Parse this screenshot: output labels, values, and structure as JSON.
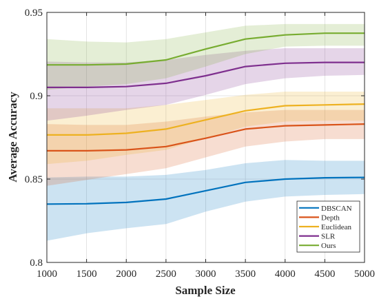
{
  "chart_data": {
    "type": "line",
    "title": "",
    "xlabel": "Sample Size",
    "ylabel": "Average Accuracy",
    "x": [
      1000,
      1500,
      2000,
      2500,
      3000,
      3500,
      4000,
      4500,
      5000
    ],
    "xlim": [
      1000,
      5000
    ],
    "ylim": [
      0.8,
      0.95
    ],
    "xticks": [
      1000,
      1500,
      2000,
      2500,
      3000,
      3500,
      4000,
      4500,
      5000
    ],
    "yticks": [
      0.8,
      0.85,
      0.9,
      0.95
    ],
    "xtick_labels": [
      "1000",
      "1500",
      "2000",
      "2500",
      "3000",
      "3500",
      "4000",
      "4500",
      "5000"
    ],
    "ytick_labels": [
      "0.8",
      "0.85",
      "0.9",
      "0.95"
    ],
    "grid": true,
    "legend_position": "bottom-right",
    "shaded_band": "mean ± spread",
    "series": [
      {
        "name": "DBSCAN",
        "color": "#0072BD",
        "values": [
          0.835,
          0.8352,
          0.836,
          0.838,
          0.843,
          0.848,
          0.85,
          0.8508,
          0.851
        ],
        "lower": [
          0.813,
          0.8175,
          0.8205,
          0.823,
          0.8305,
          0.8365,
          0.8395,
          0.8405,
          0.841
        ],
        "upper": [
          0.851,
          0.8515,
          0.8515,
          0.8525,
          0.8555,
          0.8595,
          0.8615,
          0.861,
          0.861
        ]
      },
      {
        "name": "Depth",
        "color": "#D95319",
        "values": [
          0.867,
          0.867,
          0.8675,
          0.8695,
          0.8745,
          0.88,
          0.882,
          0.8825,
          0.883
        ],
        "lower": [
          0.846,
          0.8495,
          0.853,
          0.8565,
          0.863,
          0.8695,
          0.8725,
          0.874,
          0.874
        ],
        "upper": [
          0.883,
          0.8825,
          0.8825,
          0.8845,
          0.8875,
          0.89,
          0.8915,
          0.8915,
          0.8915
        ]
      },
      {
        "name": "Euclidean",
        "color": "#EDB120",
        "values": [
          0.8765,
          0.8765,
          0.8775,
          0.88,
          0.8855,
          0.891,
          0.894,
          0.8945,
          0.895
        ],
        "lower": [
          0.859,
          0.861,
          0.8645,
          0.8675,
          0.8745,
          0.8815,
          0.8845,
          0.885,
          0.885
        ],
        "upper": [
          0.8925,
          0.8925,
          0.8925,
          0.8945,
          0.8975,
          0.9005,
          0.9025,
          0.9025,
          0.9025
        ]
      },
      {
        "name": "SLR",
        "color": "#7E2F8E",
        "values": [
          0.905,
          0.905,
          0.9055,
          0.9075,
          0.912,
          0.9175,
          0.9195,
          0.92,
          0.92
        ],
        "lower": [
          0.885,
          0.888,
          0.8915,
          0.8945,
          0.9005,
          0.907,
          0.9105,
          0.912,
          0.9125
        ],
        "upper": [
          0.9205,
          0.92,
          0.92,
          0.9215,
          0.9245,
          0.927,
          0.9285,
          0.9285,
          0.9285
        ]
      },
      {
        "name": "Ours",
        "color": "#77AC30",
        "values": [
          0.9185,
          0.9185,
          0.919,
          0.9215,
          0.928,
          0.934,
          0.9365,
          0.9375,
          0.9375
        ],
        "lower": [
          0.9035,
          0.9055,
          0.907,
          0.9105,
          0.9175,
          0.925,
          0.9295,
          0.93,
          0.93
        ],
        "upper": [
          0.934,
          0.9325,
          0.932,
          0.934,
          0.938,
          0.942,
          0.943,
          0.943,
          0.943
        ]
      }
    ]
  }
}
